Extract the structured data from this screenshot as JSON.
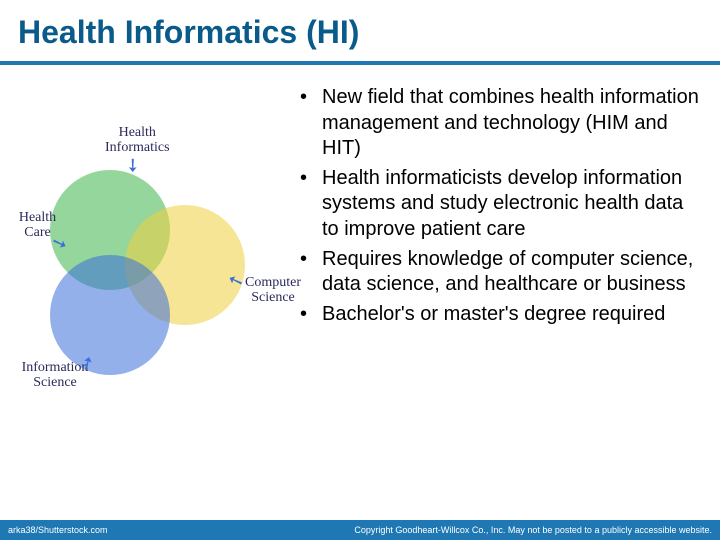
{
  "title": "Health Informatics (HI)",
  "colors": {
    "title_color": "#0a5a8a",
    "rule_color": "#1f78b4",
    "footer_bg": "#1f78b4",
    "footer_text": "#ffffff",
    "body_text": "#000000",
    "venn_label_color": "#2a2a5a"
  },
  "venn": {
    "circles": [
      {
        "name": "health-care",
        "color": "#3cb44b"
      },
      {
        "name": "computer-science",
        "color": "#f0d040"
      },
      {
        "name": "information-science",
        "color": "#3a6fd8"
      }
    ],
    "labels": {
      "top": "Health\nInformatics",
      "left": "Health\nCare",
      "right": "Computer\nScience",
      "bottom": "Information\nScience"
    },
    "label_font": "handwriting",
    "label_fontsize": 14
  },
  "bullets": [
    "New field that combines health information management and technology (HIM and HIT)",
    "Health informaticists develop information systems and study electronic health data to improve patient care",
    "Requires knowledge of computer science, data science, and healthcare or business",
    "Bachelor's or master's degree required"
  ],
  "bullet_fontsize": 20,
  "footer": {
    "left": "arka38/Shutterstock.com",
    "right": "Copyright Goodheart-Willcox Co., Inc. May not be posted to a publicly accessible website."
  }
}
